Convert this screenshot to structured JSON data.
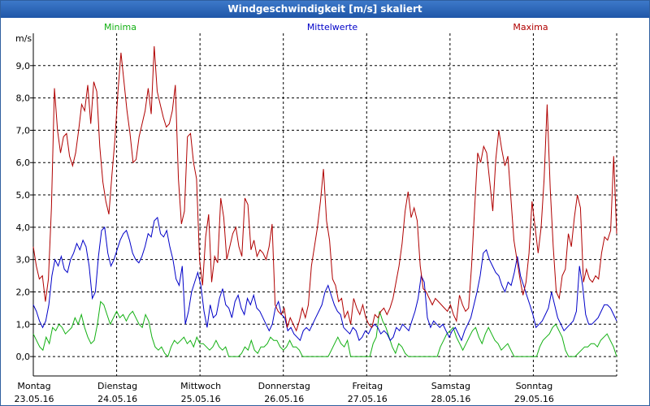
{
  "window": {
    "title": "Windgeschwindigkeit [m/s] skaliert"
  },
  "chart_data": {
    "type": "line",
    "title": "Windgeschwindigkeit [m/s] skaliert",
    "ylabel": "m/s",
    "xlabel": "",
    "ylim": [
      -0.6,
      10.0
    ],
    "xlim": [
      0,
      7
    ],
    "grid": true,
    "legend_position": "top",
    "yticks": [
      "0,0",
      "1,0",
      "2,0",
      "3,0",
      "4,0",
      "5,0",
      "6,0",
      "7,0",
      "8,0",
      "9,0"
    ],
    "ytick_values": [
      0,
      1,
      2,
      3,
      4,
      5,
      6,
      7,
      8,
      9
    ],
    "xticks": [
      {
        "day": "Montag",
        "date": "23.05.16"
      },
      {
        "day": "Dienstag",
        "date": "24.05.16"
      },
      {
        "day": "Mittwoch",
        "date": "25.05.16"
      },
      {
        "day": "Donnerstag",
        "date": "26.05.16"
      },
      {
        "day": "Freitag",
        "date": "27.05.16"
      },
      {
        "day": "Samstag",
        "date": "28.05.16"
      },
      {
        "day": "Sonntag",
        "date": "29.05.16"
      }
    ],
    "series": [
      {
        "name": "Minima",
        "color": "#12b012",
        "values": [
          0.7,
          0.5,
          0.3,
          0.2,
          0.6,
          0.4,
          0.9,
          0.8,
          1.0,
          0.9,
          0.7,
          0.8,
          0.9,
          1.2,
          1.0,
          1.3,
          0.9,
          0.6,
          0.4,
          0.5,
          1.0,
          1.7,
          1.6,
          1.3,
          1.0,
          1.2,
          1.4,
          1.2,
          1.3,
          1.1,
          1.3,
          1.4,
          1.2,
          1.0,
          0.9,
          1.3,
          1.1,
          0.6,
          0.3,
          0.2,
          0.3,
          0.1,
          0.0,
          0.3,
          0.5,
          0.4,
          0.5,
          0.6,
          0.4,
          0.5,
          0.3,
          0.6,
          0.4,
          0.4,
          0.3,
          0.2,
          0.3,
          0.5,
          0.3,
          0.2,
          0.3,
          0.0,
          0.0,
          0.0,
          0.0,
          0.1,
          0.3,
          0.2,
          0.5,
          0.2,
          0.1,
          0.3,
          0.3,
          0.4,
          0.6,
          0.5,
          0.5,
          0.3,
          0.2,
          0.3,
          0.5,
          0.3,
          0.3,
          0.2,
          0.0,
          0.0,
          0.0,
          0.0,
          0.0,
          0.0,
          0.0,
          0.0,
          0.0,
          0.2,
          0.4,
          0.6,
          0.4,
          0.3,
          0.5,
          0.0,
          0.0,
          0.0,
          0.0,
          0.0,
          0.0,
          0.0,
          0.4,
          0.6,
          1.4,
          1.1,
          0.9,
          0.6,
          0.3,
          0.1,
          0.4,
          0.3,
          0.1,
          0.0,
          0.0,
          0.0,
          0.0,
          0.0,
          0.0,
          0.0,
          0.0,
          0.0,
          0.0,
          0.3,
          0.5,
          0.7,
          0.8,
          0.9,
          0.6,
          0.4,
          0.2,
          0.4,
          0.6,
          0.8,
          0.9,
          0.6,
          0.4,
          0.7,
          0.9,
          0.7,
          0.5,
          0.4,
          0.2,
          0.3,
          0.4,
          0.2,
          0.0,
          0.0,
          0.0,
          0.0,
          0.0,
          0.0,
          0.0,
          0.0,
          0.3,
          0.5,
          0.6,
          0.7,
          0.9,
          1.0,
          0.8,
          0.6,
          0.2,
          0.0,
          0.0,
          0.0,
          0.1,
          0.2,
          0.3,
          0.3,
          0.4,
          0.4,
          0.3,
          0.5,
          0.6,
          0.7,
          0.5,
          0.3,
          0.0
        ]
      },
      {
        "name": "Mittelwerte",
        "color": "#0000c8",
        "values": [
          1.6,
          1.4,
          1.1,
          0.9,
          1.1,
          1.6,
          2.5,
          3.0,
          2.8,
          3.1,
          2.7,
          2.6,
          3.0,
          3.2,
          3.5,
          3.3,
          3.6,
          3.4,
          2.8,
          1.8,
          2.0,
          3.1,
          3.9,
          4.0,
          3.2,
          2.8,
          3.0,
          3.3,
          3.6,
          3.8,
          3.9,
          3.6,
          3.2,
          3.0,
          2.9,
          3.1,
          3.4,
          3.8,
          3.7,
          4.2,
          4.3,
          3.8,
          3.7,
          3.9,
          3.4,
          3.0,
          2.4,
          2.2,
          2.8,
          1.0,
          1.4,
          2.0,
          2.3,
          2.6,
          2.2,
          1.4,
          0.9,
          1.6,
          1.2,
          1.3,
          1.8,
          2.1,
          1.6,
          1.5,
          1.2,
          1.7,
          1.9,
          1.5,
          1.3,
          1.8,
          1.6,
          1.9,
          1.5,
          1.4,
          1.2,
          1.0,
          0.8,
          1.0,
          1.5,
          1.7,
          1.3,
          1.2,
          0.8,
          0.9,
          0.7,
          0.6,
          0.5,
          0.8,
          0.9,
          0.8,
          1.0,
          1.2,
          1.4,
          1.6,
          2.0,
          2.2,
          1.9,
          1.6,
          1.4,
          1.3,
          0.9,
          0.8,
          0.7,
          0.9,
          0.8,
          0.5,
          0.6,
          0.8,
          0.7,
          0.9,
          1.0,
          0.9,
          0.7,
          0.8,
          0.7,
          0.5,
          0.6,
          0.9,
          0.8,
          1.0,
          0.9,
          0.8,
          1.1,
          1.4,
          1.8,
          2.5,
          2.3,
          1.2,
          0.9,
          1.1,
          1.0,
          0.9,
          1.0,
          0.8,
          0.6,
          0.8,
          0.9,
          0.7,
          0.5,
          0.8,
          1.0,
          1.2,
          1.6,
          2.0,
          2.5,
          3.2,
          3.3,
          3.0,
          2.8,
          2.6,
          2.5,
          2.2,
          2.0,
          2.3,
          2.2,
          2.6,
          3.1,
          2.5,
          2.2,
          1.9,
          1.6,
          1.3,
          0.9,
          1.0,
          1.1,
          1.3,
          1.5,
          2.0,
          1.6,
          1.2,
          1.0,
          0.8,
          0.9,
          1.0,
          1.1,
          1.4,
          2.8,
          2.2,
          1.3,
          1.0,
          1.0,
          1.1,
          1.2,
          1.4,
          1.6,
          1.6,
          1.5,
          1.3,
          1.1
        ]
      },
      {
        "name": "Maxima",
        "color": "#b00000",
        "values": [
          3.4,
          2.8,
          2.4,
          2.5,
          1.7,
          2.4,
          4.6,
          8.3,
          7.0,
          6.3,
          6.8,
          6.9,
          6.2,
          5.9,
          6.3,
          7.0,
          7.8,
          7.6,
          8.4,
          7.2,
          8.5,
          8.2,
          6.5,
          5.4,
          4.8,
          4.4,
          5.6,
          6.7,
          8.2,
          9.4,
          8.5,
          7.6,
          6.9,
          6.0,
          6.1,
          6.8,
          7.2,
          7.6,
          8.3,
          7.5,
          9.6,
          8.2,
          7.8,
          7.4,
          7.1,
          7.2,
          7.6,
          8.4,
          5.5,
          4.1,
          4.5,
          6.8,
          6.9,
          6.0,
          5.5,
          3.0,
          2.2,
          3.7,
          4.4,
          2.3,
          3.1,
          2.9,
          4.9,
          4.3,
          3.0,
          3.4,
          3.8,
          4.0,
          3.4,
          3.1,
          4.9,
          4.7,
          3.3,
          3.6,
          3.1,
          3.3,
          3.2,
          3.0,
          3.4,
          4.1,
          1.6,
          1.4,
          1.3,
          1.5,
          0.9,
          1.2,
          1.0,
          0.8,
          1.1,
          1.5,
          1.2,
          1.6,
          2.8,
          3.4,
          4.0,
          4.8,
          5.8,
          4.2,
          3.6,
          2.4,
          2.2,
          1.7,
          1.8,
          1.2,
          1.4,
          1.0,
          1.8,
          1.5,
          1.3,
          1.6,
          1.2,
          1.0,
          0.9,
          1.3,
          1.2,
          1.4,
          1.5,
          1.3,
          1.5,
          1.8,
          2.3,
          2.8,
          3.5,
          4.5,
          5.1,
          4.3,
          4.6,
          4.2,
          2.8,
          2.1,
          2.0,
          1.8,
          1.6,
          1.8,
          1.7,
          1.6,
          1.5,
          1.4,
          1.6,
          1.3,
          1.1,
          1.9,
          1.6,
          1.4,
          1.5,
          2.8,
          4.6,
          6.3,
          6.0,
          6.5,
          6.3,
          5.4,
          4.5,
          6.1,
          7.0,
          6.4,
          5.9,
          6.2,
          4.9,
          3.6,
          3.0,
          2.4,
          1.9,
          2.3,
          3.2,
          4.8,
          4.0,
          3.2,
          4.0,
          5.5,
          7.8,
          5.2,
          3.4,
          2.0,
          1.8,
          2.5,
          2.7,
          3.8,
          3.4,
          4.3,
          5.0,
          4.6,
          2.3,
          2.7,
          2.4,
          2.3,
          2.5,
          2.4,
          3.2,
          3.7,
          3.6,
          3.9,
          6.2,
          3.8
        ]
      }
    ]
  }
}
